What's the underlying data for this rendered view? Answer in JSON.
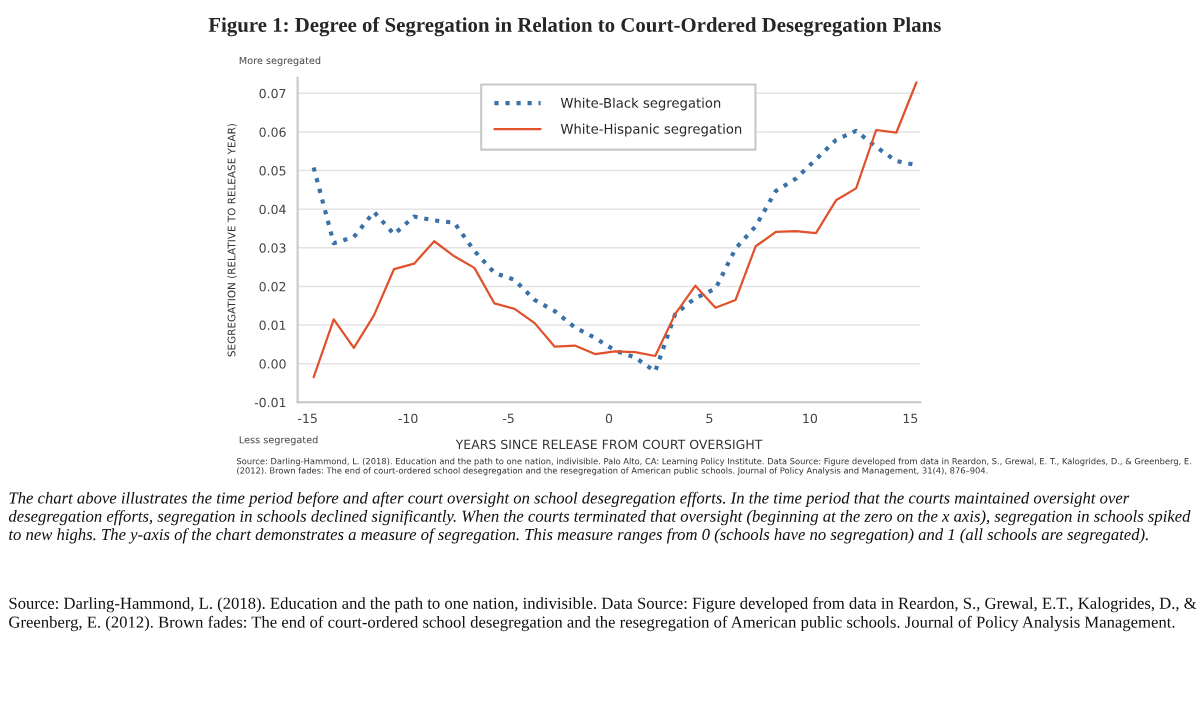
{
  "chart_data": {
    "type": "line",
    "title": "Figure 1: Degree of Segregation in Relation to Court-Ordered Desegregation Plans",
    "xlabel": "YEARS SINCE RELEASE FROM COURT OVERSIGHT",
    "ylabel": "SEGREGATION (RELATIVE TO RELEASE YEAR)",
    "x": [
      -14.7,
      -13.7,
      -12.7,
      -11.7,
      -10.7,
      -9.7,
      -8.7,
      -7.7,
      -6.7,
      -5.7,
      -4.7,
      -3.7,
      -2.7,
      -1.7,
      -0.7,
      0.3,
      1.3,
      2.3,
      3.3,
      4.3,
      5.3,
      6.3,
      7.3,
      8.3,
      9.3,
      10.3,
      11.3,
      12.3,
      13.3,
      14.3,
      15.3
    ],
    "series": [
      {
        "name": "White-Black segregation",
        "color": "#3a72a8",
        "line_style": "dotted",
        "values": [
          0.0508,
          0.0312,
          0.0328,
          0.0393,
          0.0335,
          0.0381,
          0.0371,
          0.0365,
          0.0292,
          0.0235,
          0.0217,
          0.0165,
          0.0136,
          0.0094,
          0.0067,
          0.0034,
          0.0016,
          -0.002,
          0.0129,
          0.017,
          0.0194,
          0.0298,
          0.0356,
          0.0447,
          0.0479,
          0.0529,
          0.0579,
          0.0603,
          0.0561,
          0.0525,
          0.0514
        ]
      },
      {
        "name": "White-Hispanic segregation",
        "color": "#e0512c",
        "line_style": "solid",
        "values": [
          -0.0035,
          0.0115,
          0.0041,
          0.0125,
          0.0245,
          0.0259,
          0.0317,
          0.0278,
          0.0248,
          0.0156,
          0.0142,
          0.0105,
          0.0044,
          0.0047,
          0.0025,
          0.0032,
          0.003,
          0.002,
          0.0129,
          0.0202,
          0.0145,
          0.0165,
          0.0304,
          0.0341,
          0.0343,
          0.0338,
          0.0423,
          0.0454,
          0.0605,
          0.0598,
          0.0728
        ]
      }
    ],
    "xlim": [
      -15.5,
      15.5
    ],
    "xticks": [
      -15,
      -10,
      -5,
      0,
      5,
      10,
      15
    ],
    "ylim": [
      -0.01,
      0.074
    ],
    "yticks": [
      -0.01,
      {
        "value": 0,
        "label": "0.00"
      },
      0.01,
      0.02,
      0.03,
      0.04,
      0.05,
      0.06,
      0.07
    ],
    "grid": "y",
    "legend": "top",
    "marker": "none",
    "annotations": [
      "More segregated",
      "Less segregated",
      "Source: Darling-Hammond, L. (2018). Education and the path to one nation, indivisible. Palo Alto, CA: Learning Policy Institute. Data Source: Figure developed from data in Reardon, S., Grewal, E. T., Kalogrides, D., & Greenberg, E. (2012). Brown fades: The end of court-ordered school desegregation and the resegregation of American public schools. Journal of Policy Analysis and Management, 31(4), 876–904.",
      "The chart above illustrates the time period before and after court oversight on school desegregation efforts. In the time period that the courts maintained oversight over desegregation efforts, segregation in schools declined significantly. When the courts terminated that oversight (beginning at the zero on the x axis), segregation in schools spiked to new highs. The y-axis of the chart demonstrates a measure of segregation. This measure ranges from 0 (schools have no segregation) and 1 (all schools are segregated).",
      "Source: Darling-Hammond, L. (2018). Education and the path to one nation, indivisible. Data Source: Figure developed from data in Reardon, S., Grewal, E.T., Kalogrides, D., & Greenberg, E. (2012). Brown fades: The end of court-ordered school desegregation and the resegregation of American public schools. Journal of Policy Analysis Management."
    ]
  }
}
